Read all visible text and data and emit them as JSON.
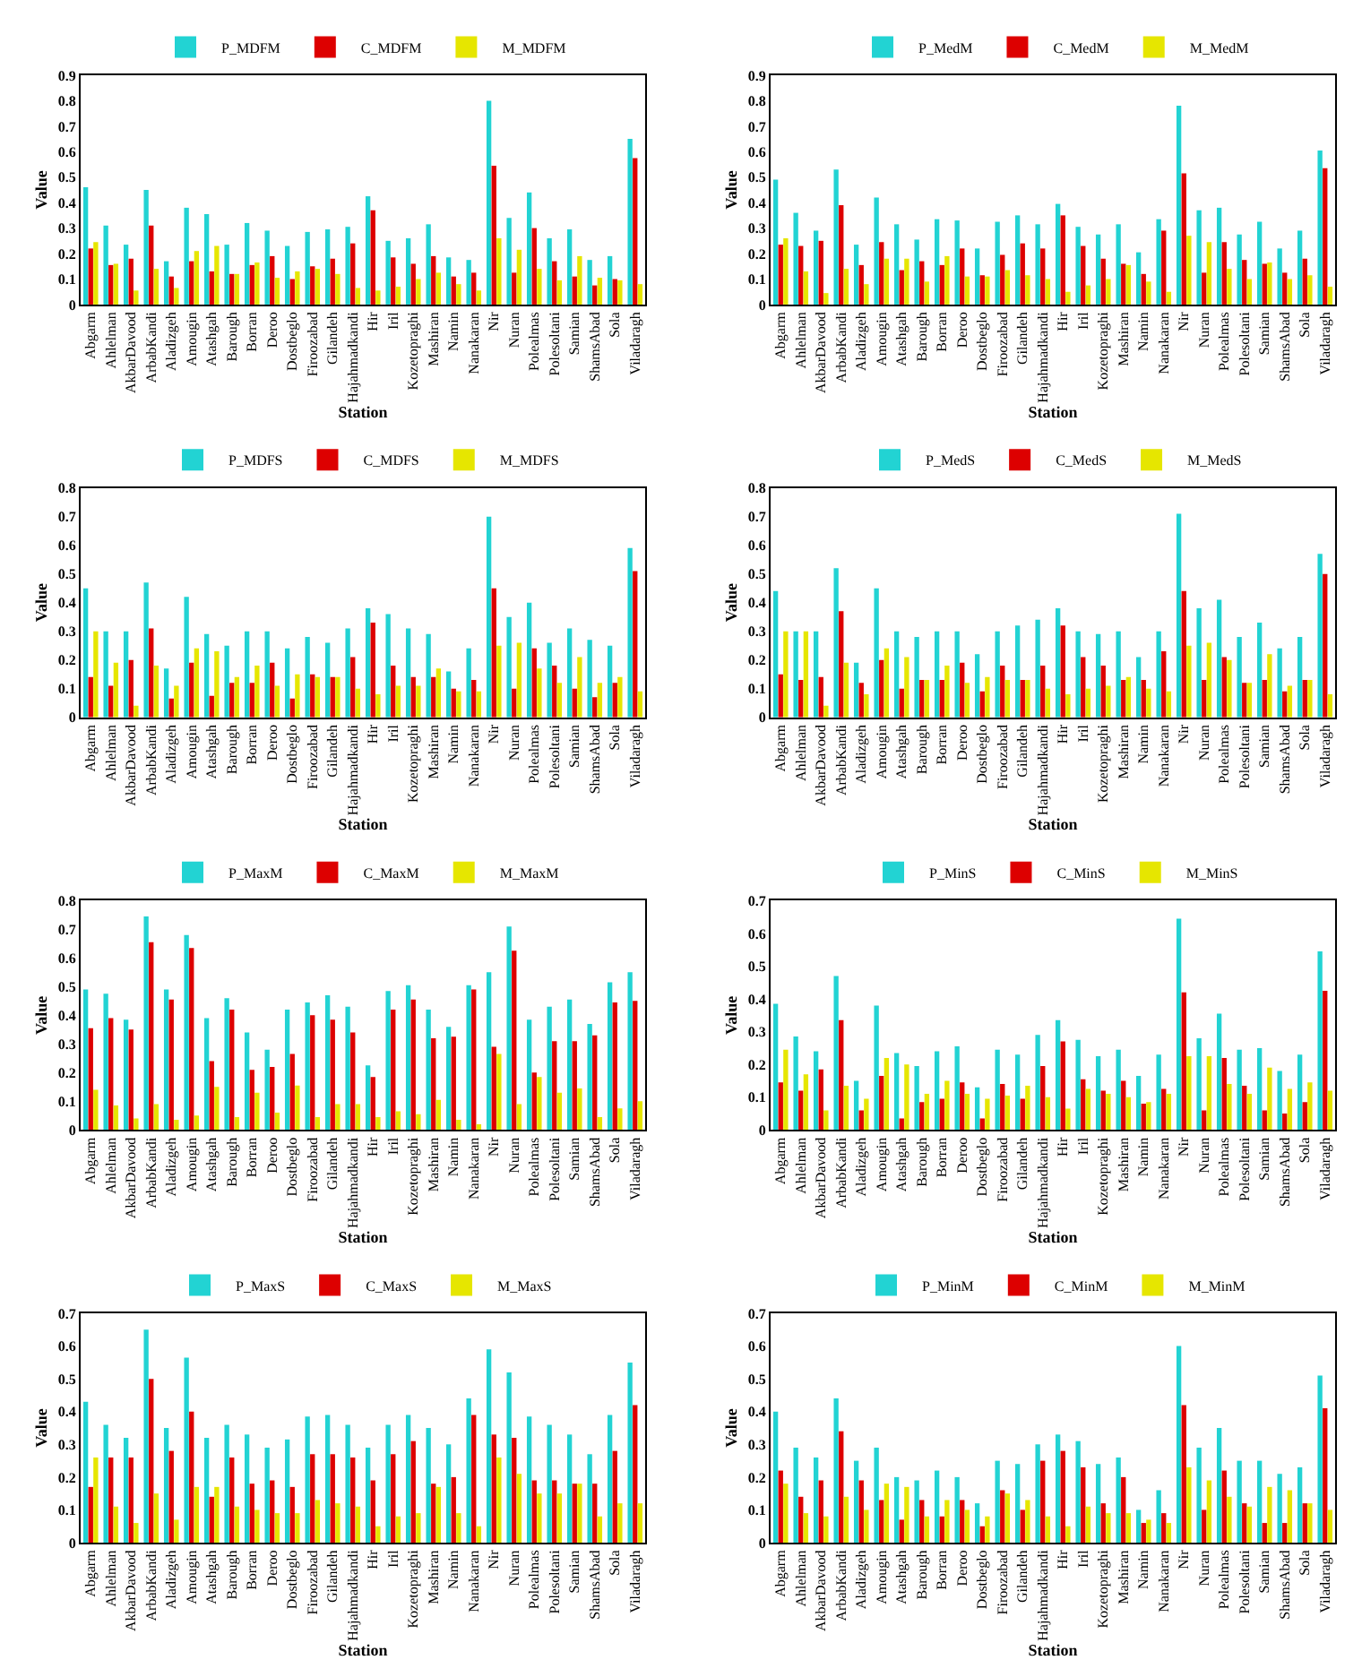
{
  "chart_data": [
    {
      "type": "bar",
      "xlabel": "Station",
      "ylabel": "Value",
      "ylim": [
        0,
        0.9
      ],
      "yticks": [
        0,
        0.1,
        0.2,
        0.3,
        0.4,
        0.5,
        0.6,
        0.7,
        0.8,
        0.9
      ],
      "legend": "top",
      "categories": [
        "Abgarm",
        "Ahlelman",
        "AkbarDavood",
        "ArbabKandi",
        "Aladizgeh",
        "Amougin",
        "Atashgah",
        "Barough",
        "Borran",
        "Deroo",
        "Dostbeglo",
        "Firoozabad",
        "Gilandeh",
        "Hajahmadkandi",
        "Hir",
        "Iril",
        "Kozetopraghi",
        "Mashiran",
        "Namin",
        "Nanakaran",
        "Nir",
        "Nuran",
        "Polealmas",
        "Polesoltani",
        "Samian",
        "ShamsAbad",
        "Sola",
        "Viladaragh"
      ],
      "series": [
        {
          "name": "P_MDFM",
          "color": "#22d3d3",
          "values": [
            0.46,
            0.31,
            0.235,
            0.45,
            0.17,
            0.38,
            0.355,
            0.235,
            0.32,
            0.29,
            0.23,
            0.285,
            0.295,
            0.305,
            0.425,
            0.25,
            0.26,
            0.315,
            0.185,
            0.175,
            0.8,
            0.34,
            0.44,
            0.26,
            0.295,
            0.175,
            0.19,
            0.65
          ]
        },
        {
          "name": "C_MDFM",
          "color": "#dd0000",
          "values": [
            0.22,
            0.155,
            0.18,
            0.31,
            0.11,
            0.17,
            0.13,
            0.12,
            0.155,
            0.19,
            0.1,
            0.15,
            0.18,
            0.24,
            0.37,
            0.185,
            0.16,
            0.19,
            0.11,
            0.125,
            0.545,
            0.125,
            0.3,
            0.17,
            0.11,
            0.075,
            0.1,
            0.575
          ]
        },
        {
          "name": "M_MDFM",
          "color": "#e6e600",
          "values": [
            0.245,
            0.16,
            0.055,
            0.14,
            0.065,
            0.21,
            0.23,
            0.12,
            0.165,
            0.105,
            0.13,
            0.14,
            0.12,
            0.065,
            0.055,
            0.07,
            0.1,
            0.125,
            0.08,
            0.055,
            0.26,
            0.215,
            0.14,
            0.095,
            0.19,
            0.105,
            0.095,
            0.08
          ]
        }
      ]
    },
    {
      "type": "bar",
      "xlabel": "Station",
      "ylabel": "Value",
      "ylim": [
        0,
        0.9
      ],
      "yticks": [
        0,
        0.1,
        0.2,
        0.3,
        0.4,
        0.5,
        0.6,
        0.7,
        0.8,
        0.9
      ],
      "legend": "top",
      "categories": [
        "Abgarm",
        "Ahlelman",
        "AkbarDavood",
        "ArbabKandi",
        "Aladizgeh",
        "Amougin",
        "Atashgah",
        "Barough",
        "Borran",
        "Deroo",
        "Dostbeglo",
        "Firoozabad",
        "Gilandeh",
        "Hajahmadkandi",
        "Hir",
        "Iril",
        "Kozetopraghi",
        "Mashiran",
        "Namin",
        "Nanakaran",
        "Nir",
        "Nuran",
        "Polealmas",
        "Polesoltani",
        "Samian",
        "ShamsAbad",
        "Sola",
        "Viladaragh"
      ],
      "series": [
        {
          "name": "P_MedM",
          "color": "#22d3d3",
          "values": [
            0.49,
            0.36,
            0.29,
            0.53,
            0.235,
            0.42,
            0.315,
            0.255,
            0.335,
            0.33,
            0.22,
            0.325,
            0.35,
            0.315,
            0.395,
            0.305,
            0.275,
            0.315,
            0.205,
            0.335,
            0.78,
            0.37,
            0.38,
            0.275,
            0.325,
            0.22,
            0.29,
            0.605
          ]
        },
        {
          "name": "C_MedM",
          "color": "#dd0000",
          "values": [
            0.235,
            0.23,
            0.25,
            0.39,
            0.155,
            0.245,
            0.135,
            0.17,
            0.155,
            0.22,
            0.115,
            0.195,
            0.24,
            0.22,
            0.35,
            0.23,
            0.18,
            0.16,
            0.12,
            0.29,
            0.515,
            0.125,
            0.245,
            0.175,
            0.16,
            0.125,
            0.18,
            0.535
          ]
        },
        {
          "name": "M_MedM",
          "color": "#e6e600",
          "values": [
            0.26,
            0.13,
            0.045,
            0.14,
            0.08,
            0.18,
            0.18,
            0.09,
            0.19,
            0.11,
            0.11,
            0.135,
            0.115,
            0.1,
            0.05,
            0.075,
            0.1,
            0.155,
            0.09,
            0.05,
            0.27,
            0.245,
            0.14,
            0.1,
            0.165,
            0.1,
            0.115,
            0.07
          ]
        }
      ]
    },
    {
      "type": "bar",
      "xlabel": "Station",
      "ylabel": "Value",
      "ylim": [
        0,
        0.8
      ],
      "yticks": [
        0,
        0.1,
        0.2,
        0.3,
        0.4,
        0.5,
        0.6,
        0.7,
        0.8
      ],
      "legend": "top",
      "categories": [
        "Abgarm",
        "Ahlelman",
        "AkbarDavood",
        "ArbabKandi",
        "Aladizgeh",
        "Amougin",
        "Atashgah",
        "Barough",
        "Borran",
        "Deroo",
        "Dostbeglo",
        "Firoozabad",
        "Gilandeh",
        "Hajahmadkandi",
        "Hir",
        "Iril",
        "Kozetopraghi",
        "Mashiran",
        "Namin",
        "Nanakaran",
        "Nir",
        "Nuran",
        "Polealmas",
        "Polesoltani",
        "Samian",
        "ShamsAbad",
        "Sola",
        "Viladaragh"
      ],
      "series": [
        {
          "name": "P_MDFS",
          "color": "#22d3d3",
          "values": [
            0.45,
            0.3,
            0.3,
            0.47,
            0.17,
            0.42,
            0.29,
            0.25,
            0.3,
            0.3,
            0.24,
            0.28,
            0.26,
            0.31,
            0.38,
            0.36,
            0.31,
            0.29,
            0.16,
            0.24,
            0.7,
            0.35,
            0.4,
            0.26,
            0.31,
            0.27,
            0.25,
            0.59
          ]
        },
        {
          "name": "C_MDFS",
          "color": "#dd0000",
          "values": [
            0.14,
            0.11,
            0.2,
            0.31,
            0.065,
            0.19,
            0.075,
            0.12,
            0.12,
            0.19,
            0.065,
            0.15,
            0.14,
            0.21,
            0.33,
            0.18,
            0.14,
            0.14,
            0.1,
            0.13,
            0.45,
            0.1,
            0.24,
            0.18,
            0.1,
            0.07,
            0.12,
            0.51
          ]
        },
        {
          "name": "M_MDFS",
          "color": "#e6e600",
          "values": [
            0.3,
            0.19,
            0.04,
            0.18,
            0.11,
            0.24,
            0.23,
            0.14,
            0.18,
            0.11,
            0.15,
            0.14,
            0.14,
            0.1,
            0.08,
            0.11,
            0.11,
            0.17,
            0.09,
            0.09,
            0.25,
            0.26,
            0.17,
            0.12,
            0.21,
            0.12,
            0.14,
            0.09
          ]
        }
      ]
    },
    {
      "type": "bar",
      "xlabel": "Station",
      "ylabel": "Value",
      "ylim": [
        0,
        0.8
      ],
      "yticks": [
        0,
        0.1,
        0.2,
        0.3,
        0.4,
        0.5,
        0.6,
        0.7,
        0.8
      ],
      "legend": "top",
      "categories": [
        "Abgarm",
        "Ahlelman",
        "AkbarDavood",
        "ArbabKandi",
        "Aladizgeh",
        "Amougin",
        "Atashgah",
        "Barough",
        "Borran",
        "Deroo",
        "Dostbeglo",
        "Firoozabad",
        "Gilandeh",
        "Hajahmadkandi",
        "Hir",
        "Iril",
        "Kozetopraghi",
        "Mashiran",
        "Namin",
        "Nanakaran",
        "Nir",
        "Nuran",
        "Polealmas",
        "Polesoltani",
        "Samian",
        "ShamsAbad",
        "Sola",
        "Viladaragh"
      ],
      "series": [
        {
          "name": "P_MedS",
          "color": "#22d3d3",
          "values": [
            0.44,
            0.3,
            0.3,
            0.52,
            0.19,
            0.45,
            0.3,
            0.28,
            0.3,
            0.3,
            0.22,
            0.3,
            0.32,
            0.34,
            0.38,
            0.3,
            0.29,
            0.3,
            0.21,
            0.3,
            0.71,
            0.38,
            0.41,
            0.28,
            0.33,
            0.24,
            0.28,
            0.57
          ]
        },
        {
          "name": "C_MedS",
          "color": "#dd0000",
          "values": [
            0.15,
            0.13,
            0.14,
            0.37,
            0.12,
            0.2,
            0.1,
            0.13,
            0.13,
            0.19,
            0.09,
            0.18,
            0.13,
            0.18,
            0.32,
            0.21,
            0.18,
            0.13,
            0.13,
            0.23,
            0.44,
            0.13,
            0.21,
            0.12,
            0.13,
            0.09,
            0.13,
            0.5
          ]
        },
        {
          "name": "M_MedS",
          "color": "#e6e600",
          "values": [
            0.3,
            0.3,
            0.04,
            0.19,
            0.08,
            0.24,
            0.21,
            0.13,
            0.18,
            0.12,
            0.14,
            0.13,
            0.13,
            0.1,
            0.08,
            0.1,
            0.11,
            0.14,
            0.1,
            0.09,
            0.25,
            0.26,
            0.2,
            0.12,
            0.22,
            0.11,
            0.13,
            0.08
          ]
        }
      ]
    },
    {
      "type": "bar",
      "xlabel": "Station",
      "ylabel": "Value",
      "ylim": [
        0,
        0.8
      ],
      "yticks": [
        0,
        0.1,
        0.2,
        0.3,
        0.4,
        0.5,
        0.6,
        0.7,
        0.8
      ],
      "legend": "top",
      "categories": [
        "Abgarm",
        "Ahlelman",
        "AkbarDavood",
        "ArbabKandi",
        "Aladizgeh",
        "Amougin",
        "Atashgah",
        "Barough",
        "Borran",
        "Deroo",
        "Dostbeglo",
        "Firoozabad",
        "Gilandeh",
        "Hajahmadkandi",
        "Hir",
        "Iril",
        "Kozetopraghi",
        "Mashiran",
        "Namin",
        "Nanakaran",
        "Nir",
        "Nuran",
        "Polealmas",
        "Polesoltani",
        "Samian",
        "ShamsAbad",
        "Sola",
        "Viladaragh"
      ],
      "series": [
        {
          "name": "P_MaxM",
          "color": "#22d3d3",
          "values": [
            0.49,
            0.475,
            0.385,
            0.745,
            0.49,
            0.68,
            0.39,
            0.46,
            0.34,
            0.28,
            0.42,
            0.445,
            0.47,
            0.43,
            0.225,
            0.485,
            0.505,
            0.42,
            0.36,
            0.505,
            0.55,
            0.71,
            0.385,
            0.43,
            0.455,
            0.37,
            0.515,
            0.55
          ]
        },
        {
          "name": "C_MaxM",
          "color": "#dd0000",
          "values": [
            0.355,
            0.39,
            0.35,
            0.655,
            0.455,
            0.635,
            0.24,
            0.42,
            0.21,
            0.22,
            0.265,
            0.4,
            0.385,
            0.34,
            0.185,
            0.42,
            0.455,
            0.32,
            0.325,
            0.49,
            0.29,
            0.625,
            0.2,
            0.31,
            0.31,
            0.33,
            0.445,
            0.45
          ]
        },
        {
          "name": "M_MaxM",
          "color": "#e6e600",
          "values": [
            0.14,
            0.085,
            0.04,
            0.09,
            0.035,
            0.05,
            0.15,
            0.045,
            0.13,
            0.06,
            0.155,
            0.045,
            0.09,
            0.09,
            0.045,
            0.065,
            0.055,
            0.105,
            0.035,
            0.02,
            0.265,
            0.09,
            0.185,
            0.13,
            0.145,
            0.045,
            0.075,
            0.1
          ]
        }
      ]
    },
    {
      "type": "bar",
      "xlabel": "Station",
      "ylabel": "Value",
      "ylim": [
        0,
        0.7
      ],
      "yticks": [
        0,
        0.1,
        0.2,
        0.3,
        0.4,
        0.5,
        0.6,
        0.7
      ],
      "legend": "top",
      "categories": [
        "Abgarm",
        "Ahlelman",
        "AkbarDavood",
        "ArbabKandi",
        "Aladizgeh",
        "Amougin",
        "Atashgah",
        "Barough",
        "Borran",
        "Deroo",
        "Dostbeglo",
        "Firoozabad",
        "Gilandeh",
        "Hajahmadkandi",
        "Hir",
        "Iril",
        "Kozetopraghi",
        "Mashiran",
        "Namin",
        "Nanakaran",
        "Nir",
        "Nuran",
        "Polealmas",
        "Polesoltani",
        "Samian",
        "ShamsAbad",
        "Sola",
        "Viladaragh"
      ],
      "series": [
        {
          "name": "P_MinS",
          "color": "#22d3d3",
          "values": [
            0.385,
            0.285,
            0.24,
            0.47,
            0.15,
            0.38,
            0.235,
            0.195,
            0.24,
            0.255,
            0.13,
            0.245,
            0.23,
            0.29,
            0.335,
            0.275,
            0.225,
            0.245,
            0.165,
            0.23,
            0.645,
            0.28,
            0.355,
            0.245,
            0.25,
            0.18,
            0.23,
            0.545
          ]
        },
        {
          "name": "C_MinS",
          "color": "#dd0000",
          "values": [
            0.145,
            0.12,
            0.185,
            0.335,
            0.06,
            0.165,
            0.035,
            0.085,
            0.095,
            0.145,
            0.035,
            0.14,
            0.095,
            0.195,
            0.27,
            0.155,
            0.12,
            0.15,
            0.08,
            0.125,
            0.42,
            0.06,
            0.22,
            0.135,
            0.06,
            0.05,
            0.085,
            0.425
          ]
        },
        {
          "name": "M_MinS",
          "color": "#e6e600",
          "values": [
            0.245,
            0.17,
            0.06,
            0.135,
            0.095,
            0.22,
            0.2,
            0.11,
            0.15,
            0.11,
            0.095,
            0.105,
            0.135,
            0.1,
            0.065,
            0.125,
            0.11,
            0.1,
            0.085,
            0.11,
            0.225,
            0.225,
            0.14,
            0.11,
            0.19,
            0.125,
            0.145,
            0.12
          ]
        }
      ]
    },
    {
      "type": "bar",
      "xlabel": "Station",
      "ylabel": "Value",
      "ylim": [
        0,
        0.7
      ],
      "yticks": [
        0,
        0.1,
        0.2,
        0.3,
        0.4,
        0.5,
        0.6,
        0.7
      ],
      "legend": "top",
      "categories": [
        "Abgarm",
        "Ahlelman",
        "AkbarDavood",
        "ArbabKandi",
        "Aladizgeh",
        "Amougin",
        "Atashgah",
        "Barough",
        "Borran",
        "Deroo",
        "Dostbeglo",
        "Firoozabad",
        "Gilandeh",
        "Hajahmadkandi",
        "Hir",
        "Iril",
        "Kozetopraghi",
        "Mashiran",
        "Namin",
        "Nanakaran",
        "Nir",
        "Nuran",
        "Polealmas",
        "Polesoltani",
        "Samian",
        "ShamsAbad",
        "Sola",
        "Viladaragh"
      ],
      "series": [
        {
          "name": "P_MaxS",
          "color": "#22d3d3",
          "values": [
            0.43,
            0.36,
            0.32,
            0.65,
            0.35,
            0.565,
            0.32,
            0.36,
            0.33,
            0.29,
            0.315,
            0.385,
            0.39,
            0.36,
            0.29,
            0.36,
            0.39,
            0.35,
            0.3,
            0.44,
            0.59,
            0.52,
            0.385,
            0.36,
            0.33,
            0.27,
            0.39,
            0.55
          ]
        },
        {
          "name": "C_MaxS",
          "color": "#dd0000",
          "values": [
            0.17,
            0.26,
            0.26,
            0.5,
            0.28,
            0.4,
            0.14,
            0.26,
            0.18,
            0.19,
            0.17,
            0.27,
            0.27,
            0.26,
            0.19,
            0.27,
            0.31,
            0.18,
            0.2,
            0.39,
            0.33,
            0.32,
            0.19,
            0.19,
            0.18,
            0.18,
            0.28,
            0.42
          ]
        },
        {
          "name": "M_MaxS",
          "color": "#e6e600",
          "values": [
            0.26,
            0.11,
            0.06,
            0.15,
            0.07,
            0.17,
            0.17,
            0.11,
            0.1,
            0.09,
            0.09,
            0.13,
            0.12,
            0.11,
            0.05,
            0.08,
            0.09,
            0.17,
            0.09,
            0.05,
            0.26,
            0.21,
            0.15,
            0.15,
            0.18,
            0.08,
            0.12,
            0.12
          ]
        }
      ]
    },
    {
      "type": "bar",
      "xlabel": "Station",
      "ylabel": "Value",
      "ylim": [
        0,
        0.7
      ],
      "yticks": [
        0,
        0.1,
        0.2,
        0.3,
        0.4,
        0.5,
        0.6,
        0.7
      ],
      "legend": "top",
      "categories": [
        "Abgarm",
        "Ahlelman",
        "AkbarDavood",
        "ArbabKandi",
        "Aladizgeh",
        "Amougin",
        "Atashgah",
        "Barough",
        "Borran",
        "Deroo",
        "Dostbeglo",
        "Firoozabad",
        "Gilandeh",
        "Hajahmadkandi",
        "Hir",
        "Iril",
        "Kozetopraghi",
        "Mashiran",
        "Namin",
        "Nanakaran",
        "Nir",
        "Nuran",
        "Polealmas",
        "Polesoltani",
        "Samian",
        "ShamsAbad",
        "Sola",
        "Viladaragh"
      ],
      "series": [
        {
          "name": "P_MinM",
          "color": "#22d3d3",
          "values": [
            0.4,
            0.29,
            0.26,
            0.44,
            0.25,
            0.29,
            0.2,
            0.19,
            0.22,
            0.2,
            0.12,
            0.25,
            0.24,
            0.3,
            0.33,
            0.31,
            0.24,
            0.26,
            0.1,
            0.16,
            0.6,
            0.29,
            0.35,
            0.25,
            0.25,
            0.21,
            0.23,
            0.51
          ]
        },
        {
          "name": "C_MinM",
          "color": "#dd0000",
          "values": [
            0.22,
            0.14,
            0.19,
            0.34,
            0.19,
            0.13,
            0.07,
            0.13,
            0.08,
            0.13,
            0.05,
            0.16,
            0.1,
            0.25,
            0.28,
            0.23,
            0.12,
            0.2,
            0.06,
            0.09,
            0.42,
            0.1,
            0.22,
            0.12,
            0.06,
            0.06,
            0.12,
            0.41
          ]
        },
        {
          "name": "M_MinM",
          "color": "#e6e600",
          "values": [
            0.18,
            0.09,
            0.08,
            0.14,
            0.1,
            0.18,
            0.17,
            0.08,
            0.13,
            0.1,
            0.08,
            0.15,
            0.13,
            0.08,
            0.05,
            0.11,
            0.09,
            0.09,
            0.07,
            0.06,
            0.23,
            0.19,
            0.14,
            0.11,
            0.17,
            0.16,
            0.12,
            0.1
          ]
        }
      ]
    }
  ]
}
